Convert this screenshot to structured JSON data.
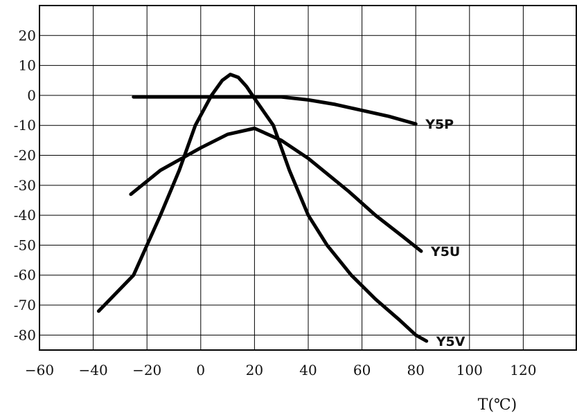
{
  "chart_data": {
    "type": "line",
    "title": "",
    "xlabel": "T(℃)",
    "ylabel": "",
    "xlim": [
      -60,
      140
    ],
    "ylim": [
      -85,
      30
    ],
    "grid": true,
    "x_ticks": [
      -60,
      -40,
      -20,
      0,
      20,
      40,
      60,
      80,
      100,
      120
    ],
    "y_ticks": [
      20,
      10,
      0,
      -10,
      -20,
      -30,
      -40,
      -50,
      -60,
      -70,
      -80
    ],
    "x_tick_labels": [
      "−60",
      "−40",
      "−20",
      "0",
      "20",
      "40",
      "60",
      "80",
      "100",
      "120"
    ],
    "y_tick_labels": [
      "20",
      "10",
      "0",
      "-10",
      "-20",
      "-30",
      "-40",
      "-50",
      "-60",
      "-70",
      "-80"
    ],
    "series": [
      {
        "name": "Y5P",
        "points": [
          [
            -25,
            -0.5
          ],
          [
            0,
            -0.5
          ],
          [
            20,
            -0.5
          ],
          [
            30,
            -0.5
          ],
          [
            40,
            -1.5
          ],
          [
            50,
            -3
          ],
          [
            60,
            -5
          ],
          [
            70,
            -7
          ],
          [
            80,
            -9.5
          ]
        ]
      },
      {
        "name": "Y5U",
        "points": [
          [
            -26,
            -33
          ],
          [
            -15,
            -25
          ],
          [
            0,
            -17.5
          ],
          [
            10,
            -13
          ],
          [
            20,
            -11
          ],
          [
            30,
            -15
          ],
          [
            40,
            -21
          ],
          [
            55,
            -32
          ],
          [
            65,
            -40
          ],
          [
            75,
            -47
          ],
          [
            82,
            -52
          ]
        ]
      },
      {
        "name": "Y5V",
        "points": [
          [
            -38,
            -72
          ],
          [
            -25,
            -60
          ],
          [
            -15,
            -40
          ],
          [
            -8,
            -25
          ],
          [
            -2,
            -10
          ],
          [
            4,
            0
          ],
          [
            8,
            5
          ],
          [
            11,
            7
          ],
          [
            14,
            6
          ],
          [
            17,
            3
          ],
          [
            20,
            -1
          ],
          [
            27,
            -10
          ],
          [
            33,
            -25
          ],
          [
            40,
            -40
          ],
          [
            47,
            -50
          ],
          [
            56,
            -60
          ],
          [
            65,
            -68
          ],
          [
            74,
            -75
          ],
          [
            80,
            -80
          ],
          [
            84,
            -82
          ]
        ]
      }
    ]
  }
}
